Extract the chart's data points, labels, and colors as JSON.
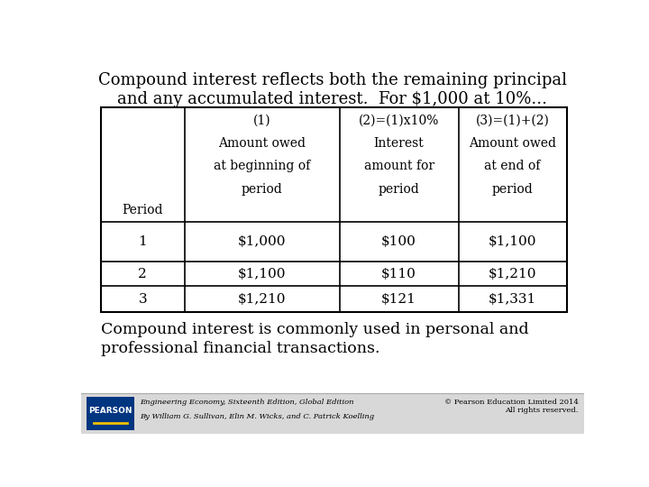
{
  "title_line1": "Compound interest reflects both the remaining principal",
  "title_line2": "and any accumulated interest.  For $1,000 at 10%...",
  "col0_header_lines": [
    "Period"
  ],
  "col1_header_lines": [
    "(1)",
    "Amount owed",
    "at beginning of",
    "period"
  ],
  "col2_header_lines": [
    "(2)=(1)x10%",
    "Interest",
    "amount for",
    "period"
  ],
  "col3_header_lines": [
    "(3)=(1)+(2)",
    "Amount owed",
    "at end of",
    "period"
  ],
  "rows": [
    [
      "1",
      "$1,000",
      "$100",
      "$1,100"
    ],
    [
      "2",
      "$1,100",
      "$110",
      "$1,210"
    ],
    [
      "3",
      "$1,210",
      "$121",
      "$1,331"
    ]
  ],
  "footer_line1": "Compound interest is commonly used in personal and",
  "footer_line2": "professional financial transactions.",
  "footnote_line1": "Engineering Economy, Sixteenth Edition, Global Edition",
  "footnote_line2": "By William G. Sullivan, Elin M. Wicks, and C. Patrick Koelling",
  "copyright": "© Pearson Education Limited 2014\nAll rights reserved.",
  "bg_color": "#ffffff",
  "text_color": "#000000",
  "pearson_bg": "#003580",
  "footer_bar_color": "#cccccc"
}
